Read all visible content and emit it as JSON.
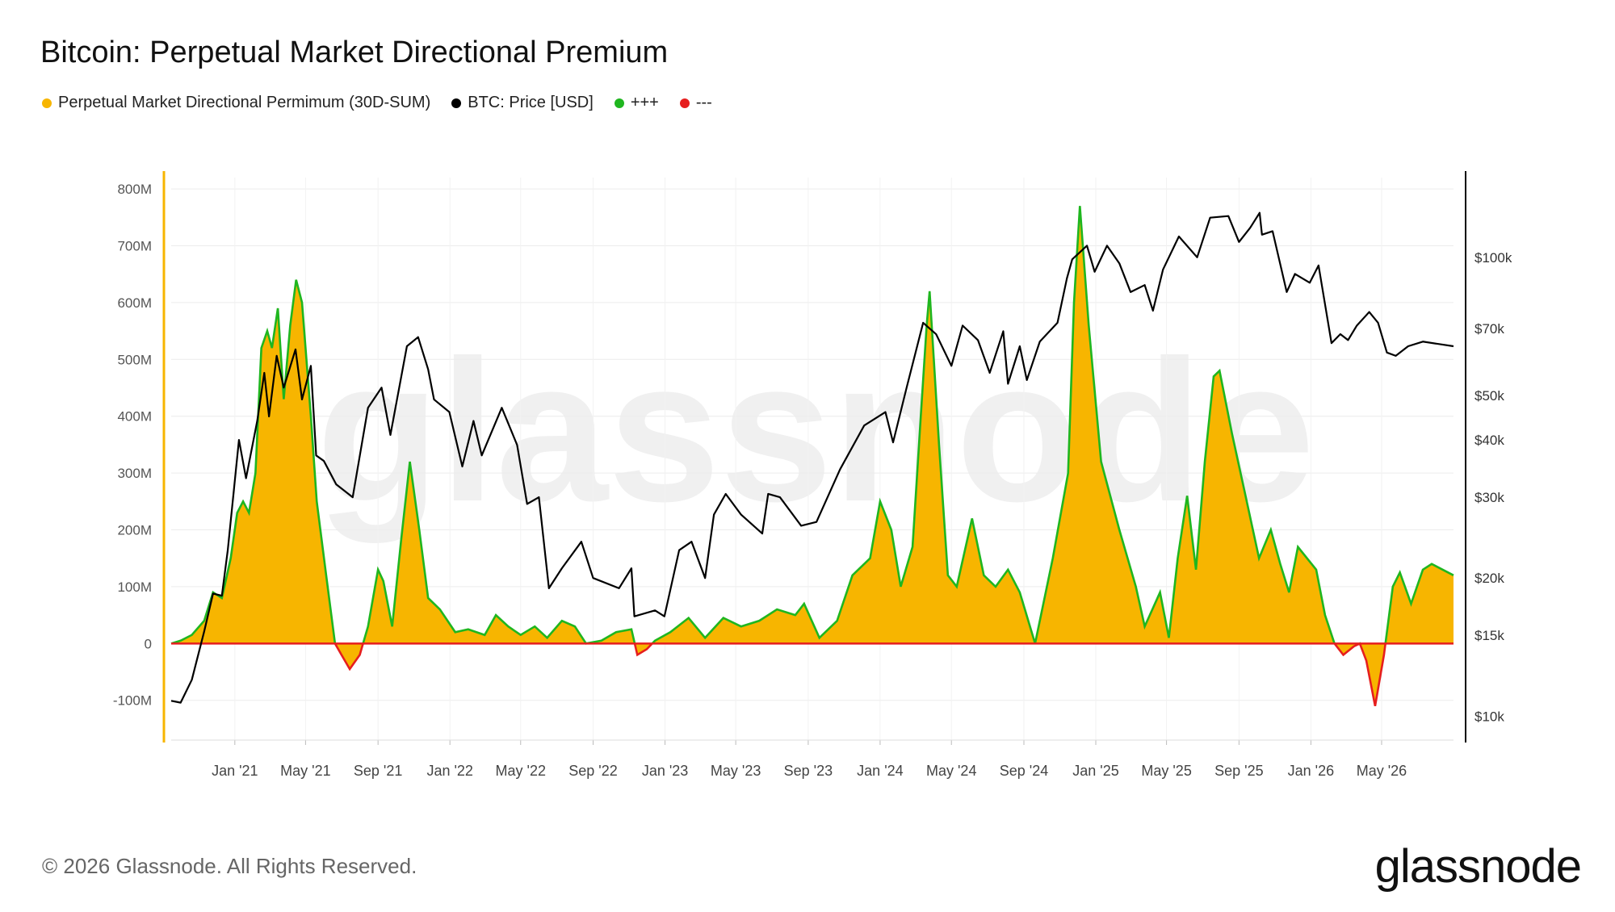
{
  "header": {
    "title": "Bitcoin: Perpetual Market Directional Premium"
  },
  "legend": [
    {
      "label": "Perpetual Market Directional Permimum (30D-SUM)",
      "color": "#f7b500"
    },
    {
      "label": "BTC: Price [USD]",
      "color": "#000000"
    },
    {
      "label": "+++",
      "color": "#1fb61f"
    },
    {
      "label": "---",
      "color": "#e61e1e"
    }
  ],
  "footer": {
    "copyright": "© 2026 Glassnode. All Rights Reserved.",
    "brand": "glassnode"
  },
  "watermark": "glassnode",
  "colors": {
    "premium_fill": "#f7b500",
    "positive_line": "#1fb61f",
    "negative_line": "#e61e1e",
    "price_line": "#000000",
    "left_axis": "#f7b500",
    "right_axis": "#000000"
  },
  "chart_data": {
    "type": "area",
    "title": "Bitcoin: Perpetual Market Directional Premium",
    "x_axis": {
      "ticks": [
        "Jan '21",
        "May '21",
        "Sep '21",
        "Jan '22",
        "May '22",
        "Sep '22",
        "Jan '23",
        "May '23",
        "Sep '23",
        "Jan '24",
        "May '24",
        "Sep '24",
        "Jan '25",
        "May '25",
        "Sep '25",
        "Jan '26",
        "May '26"
      ],
      "range": [
        "2020-09-15",
        "2026-08-31"
      ]
    },
    "y_left": {
      "ticks": [
        "800M",
        "700M",
        "600M",
        "500M",
        "400M",
        "300M",
        "200M",
        "100M",
        "0",
        "-100M"
      ],
      "range_millions": [
        -170,
        820
      ]
    },
    "y_right": {
      "ticks": [
        "$100k",
        "$70k",
        "$50k",
        "$40k",
        "$30k",
        "$20k",
        "$15k",
        "$10k"
      ],
      "scale": "log",
      "range_usd": [
        9500,
        148000
      ]
    },
    "grid": true,
    "series": [
      {
        "name": "Perpetual Market Directional Permimum (30D-SUM)",
        "axis": "left",
        "unit": "USD millions",
        "points": [
          [
            "2020-09-15",
            0
          ],
          [
            "2020-10-01",
            5
          ],
          [
            "2020-10-20",
            15
          ],
          [
            "2020-11-10",
            40
          ],
          [
            "2020-11-25",
            90
          ],
          [
            "2020-12-10",
            80
          ],
          [
            "2020-12-25",
            150
          ],
          [
            "2021-01-05",
            230
          ],
          [
            "2021-01-15",
            250
          ],
          [
            "2021-01-25",
            230
          ],
          [
            "2021-02-05",
            300
          ],
          [
            "2021-02-15",
            520
          ],
          [
            "2021-02-25",
            550
          ],
          [
            "2021-03-05",
            520
          ],
          [
            "2021-03-15",
            590
          ],
          [
            "2021-03-25",
            430
          ],
          [
            "2021-04-05",
            560
          ],
          [
            "2021-04-15",
            640
          ],
          [
            "2021-04-25",
            600
          ],
          [
            "2021-05-10",
            400
          ],
          [
            "2021-05-20",
            250
          ],
          [
            "2021-06-05",
            120
          ],
          [
            "2021-06-20",
            0
          ],
          [
            "2021-07-01",
            -20
          ],
          [
            "2021-07-15",
            -45
          ],
          [
            "2021-08-01",
            -20
          ],
          [
            "2021-08-15",
            30
          ],
          [
            "2021-09-01",
            130
          ],
          [
            "2021-09-10",
            110
          ],
          [
            "2021-09-25",
            30
          ],
          [
            "2021-10-10",
            180
          ],
          [
            "2021-10-25",
            320
          ],
          [
            "2021-11-10",
            200
          ],
          [
            "2021-11-25",
            80
          ],
          [
            "2021-12-15",
            60
          ],
          [
            "2022-01-10",
            20
          ],
          [
            "2022-02-01",
            25
          ],
          [
            "2022-03-01",
            15
          ],
          [
            "2022-03-20",
            50
          ],
          [
            "2022-04-10",
            30
          ],
          [
            "2022-05-01",
            15
          ],
          [
            "2022-05-25",
            30
          ],
          [
            "2022-06-15",
            10
          ],
          [
            "2022-07-10",
            40
          ],
          [
            "2022-08-01",
            30
          ],
          [
            "2022-08-20",
            0
          ],
          [
            "2022-09-15",
            5
          ],
          [
            "2022-10-10",
            20
          ],
          [
            "2022-11-05",
            25
          ],
          [
            "2022-11-15",
            -20
          ],
          [
            "2022-12-01",
            -10
          ],
          [
            "2022-12-15",
            5
          ],
          [
            "2023-01-10",
            20
          ],
          [
            "2023-02-10",
            45
          ],
          [
            "2023-03-10",
            10
          ],
          [
            "2023-04-10",
            45
          ],
          [
            "2023-05-10",
            30
          ],
          [
            "2023-06-10",
            40
          ],
          [
            "2023-07-10",
            60
          ],
          [
            "2023-08-10",
            50
          ],
          [
            "2023-08-25",
            70
          ],
          [
            "2023-09-20",
            10
          ],
          [
            "2023-10-20",
            40
          ],
          [
            "2023-11-15",
            120
          ],
          [
            "2023-12-15",
            150
          ],
          [
            "2024-01-01",
            250
          ],
          [
            "2024-01-20",
            200
          ],
          [
            "2024-02-05",
            100
          ],
          [
            "2024-02-25",
            170
          ],
          [
            "2024-03-10",
            400
          ],
          [
            "2024-03-20",
            560
          ],
          [
            "2024-03-25",
            620
          ],
          [
            "2024-04-10",
            350
          ],
          [
            "2024-04-25",
            120
          ],
          [
            "2024-05-10",
            100
          ],
          [
            "2024-06-05",
            220
          ],
          [
            "2024-06-25",
            120
          ],
          [
            "2024-07-15",
            100
          ],
          [
            "2024-08-05",
            130
          ],
          [
            "2024-08-25",
            90
          ],
          [
            "2024-09-20",
            0
          ],
          [
            "2024-10-20",
            150
          ],
          [
            "2024-11-15",
            300
          ],
          [
            "2024-11-25",
            600
          ],
          [
            "2024-12-05",
            770
          ],
          [
            "2024-12-20",
            560
          ],
          [
            "2025-01-10",
            320
          ],
          [
            "2025-02-10",
            200
          ],
          [
            "2025-03-10",
            100
          ],
          [
            "2025-03-25",
            30
          ],
          [
            "2025-04-20",
            90
          ],
          [
            "2025-05-05",
            10
          ],
          [
            "2025-05-20",
            150
          ],
          [
            "2025-06-05",
            260
          ],
          [
            "2025-06-20",
            130
          ],
          [
            "2025-07-05",
            320
          ],
          [
            "2025-07-20",
            470
          ],
          [
            "2025-07-30",
            480
          ],
          [
            "2025-08-20",
            370
          ],
          [
            "2025-09-10",
            270
          ],
          [
            "2025-10-05",
            150
          ],
          [
            "2025-10-25",
            200
          ],
          [
            "2025-11-10",
            140
          ],
          [
            "2025-11-25",
            90
          ],
          [
            "2025-12-10",
            170
          ],
          [
            "2026-01-10",
            130
          ],
          [
            "2026-01-25",
            50
          ],
          [
            "2026-02-10",
            0
          ],
          [
            "2026-02-25",
            -20
          ],
          [
            "2026-03-15",
            -5
          ],
          [
            "2026-03-25",
            0
          ],
          [
            "2026-04-05",
            -30
          ],
          [
            "2026-04-20",
            -110
          ],
          [
            "2026-05-05",
            -20
          ],
          [
            "2026-05-20",
            100
          ],
          [
            "2026-06-01",
            125
          ],
          [
            "2026-06-20",
            70
          ],
          [
            "2026-07-10",
            130
          ],
          [
            "2026-07-25",
            140
          ],
          [
            "2026-08-31",
            120
          ]
        ]
      },
      {
        "name": "BTC: Price [USD]",
        "axis": "right",
        "unit": "USD",
        "points": [
          [
            "2020-09-15",
            10800
          ],
          [
            "2020-10-01",
            10700
          ],
          [
            "2020-10-20",
            12000
          ],
          [
            "2020-11-10",
            15300
          ],
          [
            "2020-11-25",
            18500
          ],
          [
            "2020-12-10",
            18300
          ],
          [
            "2020-12-20",
            23000
          ],
          [
            "2021-01-08",
            40000
          ],
          [
            "2021-01-20",
            33000
          ],
          [
            "2021-02-08",
            44000
          ],
          [
            "2021-02-20",
            56000
          ],
          [
            "2021-02-28",
            45000
          ],
          [
            "2021-03-13",
            61000
          ],
          [
            "2021-03-25",
            52000
          ],
          [
            "2021-04-14",
            63000
          ],
          [
            "2021-04-25",
            49000
          ],
          [
            "2021-05-10",
            58000
          ],
          [
            "2021-05-19",
            37000
          ],
          [
            "2021-06-01",
            36000
          ],
          [
            "2021-06-22",
            32000
          ],
          [
            "2021-07-20",
            30000
          ],
          [
            "2021-08-15",
            47000
          ],
          [
            "2021-09-07",
            52000
          ],
          [
            "2021-09-22",
            41000
          ],
          [
            "2021-10-20",
            64000
          ],
          [
            "2021-11-08",
            67000
          ],
          [
            "2021-11-25",
            57000
          ],
          [
            "2021-12-05",
            49000
          ],
          [
            "2021-12-31",
            46000
          ],
          [
            "2022-01-22",
            35000
          ],
          [
            "2022-02-10",
            44000
          ],
          [
            "2022-02-24",
            37000
          ],
          [
            "2022-03-30",
            47000
          ],
          [
            "2022-04-25",
            39000
          ],
          [
            "2022-05-12",
            29000
          ],
          [
            "2022-06-01",
            30000
          ],
          [
            "2022-06-18",
            19000
          ],
          [
            "2022-07-10",
            21000
          ],
          [
            "2022-08-12",
            24000
          ],
          [
            "2022-09-01",
            20000
          ],
          [
            "2022-10-15",
            19000
          ],
          [
            "2022-11-05",
            21000
          ],
          [
            "2022-11-10",
            16500
          ],
          [
            "2022-12-15",
            17000
          ],
          [
            "2022-12-31",
            16500
          ],
          [
            "2023-01-25",
            23000
          ],
          [
            "2023-02-15",
            24000
          ],
          [
            "2023-03-10",
            20000
          ],
          [
            "2023-03-25",
            27500
          ],
          [
            "2023-04-14",
            30500
          ],
          [
            "2023-05-10",
            27500
          ],
          [
            "2023-06-15",
            25000
          ],
          [
            "2023-06-25",
            30500
          ],
          [
            "2023-07-15",
            30000
          ],
          [
            "2023-08-20",
            26000
          ],
          [
            "2023-09-15",
            26500
          ],
          [
            "2023-10-25",
            34500
          ],
          [
            "2023-12-05",
            43000
          ],
          [
            "2024-01-10",
            46000
          ],
          [
            "2024-01-23",
            39500
          ],
          [
            "2024-02-15",
            52000
          ],
          [
            "2024-03-14",
            72000
          ],
          [
            "2024-04-05",
            68000
          ],
          [
            "2024-05-01",
            58000
          ],
          [
            "2024-05-20",
            71000
          ],
          [
            "2024-06-15",
            66000
          ],
          [
            "2024-07-05",
            56000
          ],
          [
            "2024-07-28",
            69000
          ],
          [
            "2024-08-05",
            53000
          ],
          [
            "2024-08-25",
            64000
          ],
          [
            "2024-09-06",
            54000
          ],
          [
            "2024-09-28",
            65500
          ],
          [
            "2024-10-28",
            72000
          ],
          [
            "2024-11-13",
            90000
          ],
          [
            "2024-11-22",
            99000
          ],
          [
            "2024-12-17",
            106000
          ],
          [
            "2024-12-30",
            93000
          ],
          [
            "2025-01-20",
            106000
          ],
          [
            "2025-02-10",
            97000
          ],
          [
            "2025-03-01",
            84000
          ],
          [
            "2025-03-25",
            87000
          ],
          [
            "2025-04-08",
            76500
          ],
          [
            "2025-04-25",
            94000
          ],
          [
            "2025-05-22",
            111000
          ],
          [
            "2025-06-22",
            100000
          ],
          [
            "2025-07-14",
            122000
          ],
          [
            "2025-08-14",
            123000
          ],
          [
            "2025-09-01",
            108000
          ],
          [
            "2025-09-20",
            116000
          ],
          [
            "2025-10-06",
            125000
          ],
          [
            "2025-10-10",
            112000
          ],
          [
            "2025-10-28",
            114000
          ],
          [
            "2025-11-21",
            84000
          ],
          [
            "2025-12-05",
            92000
          ],
          [
            "2025-12-30",
            88000
          ],
          [
            "2026-01-14",
            96000
          ],
          [
            "2026-02-05",
            65000
          ],
          [
            "2026-02-20",
            68000
          ],
          [
            "2026-03-05",
            66000
          ],
          [
            "2026-03-20",
            71000
          ],
          [
            "2026-04-10",
            76000
          ],
          [
            "2026-04-25",
            72000
          ],
          [
            "2026-05-10",
            62000
          ],
          [
            "2026-05-25",
            61000
          ],
          [
            "2026-06-15",
            64000
          ],
          [
            "2026-07-10",
            65500
          ],
          [
            "2026-08-31",
            64000
          ]
        ]
      }
    ]
  }
}
